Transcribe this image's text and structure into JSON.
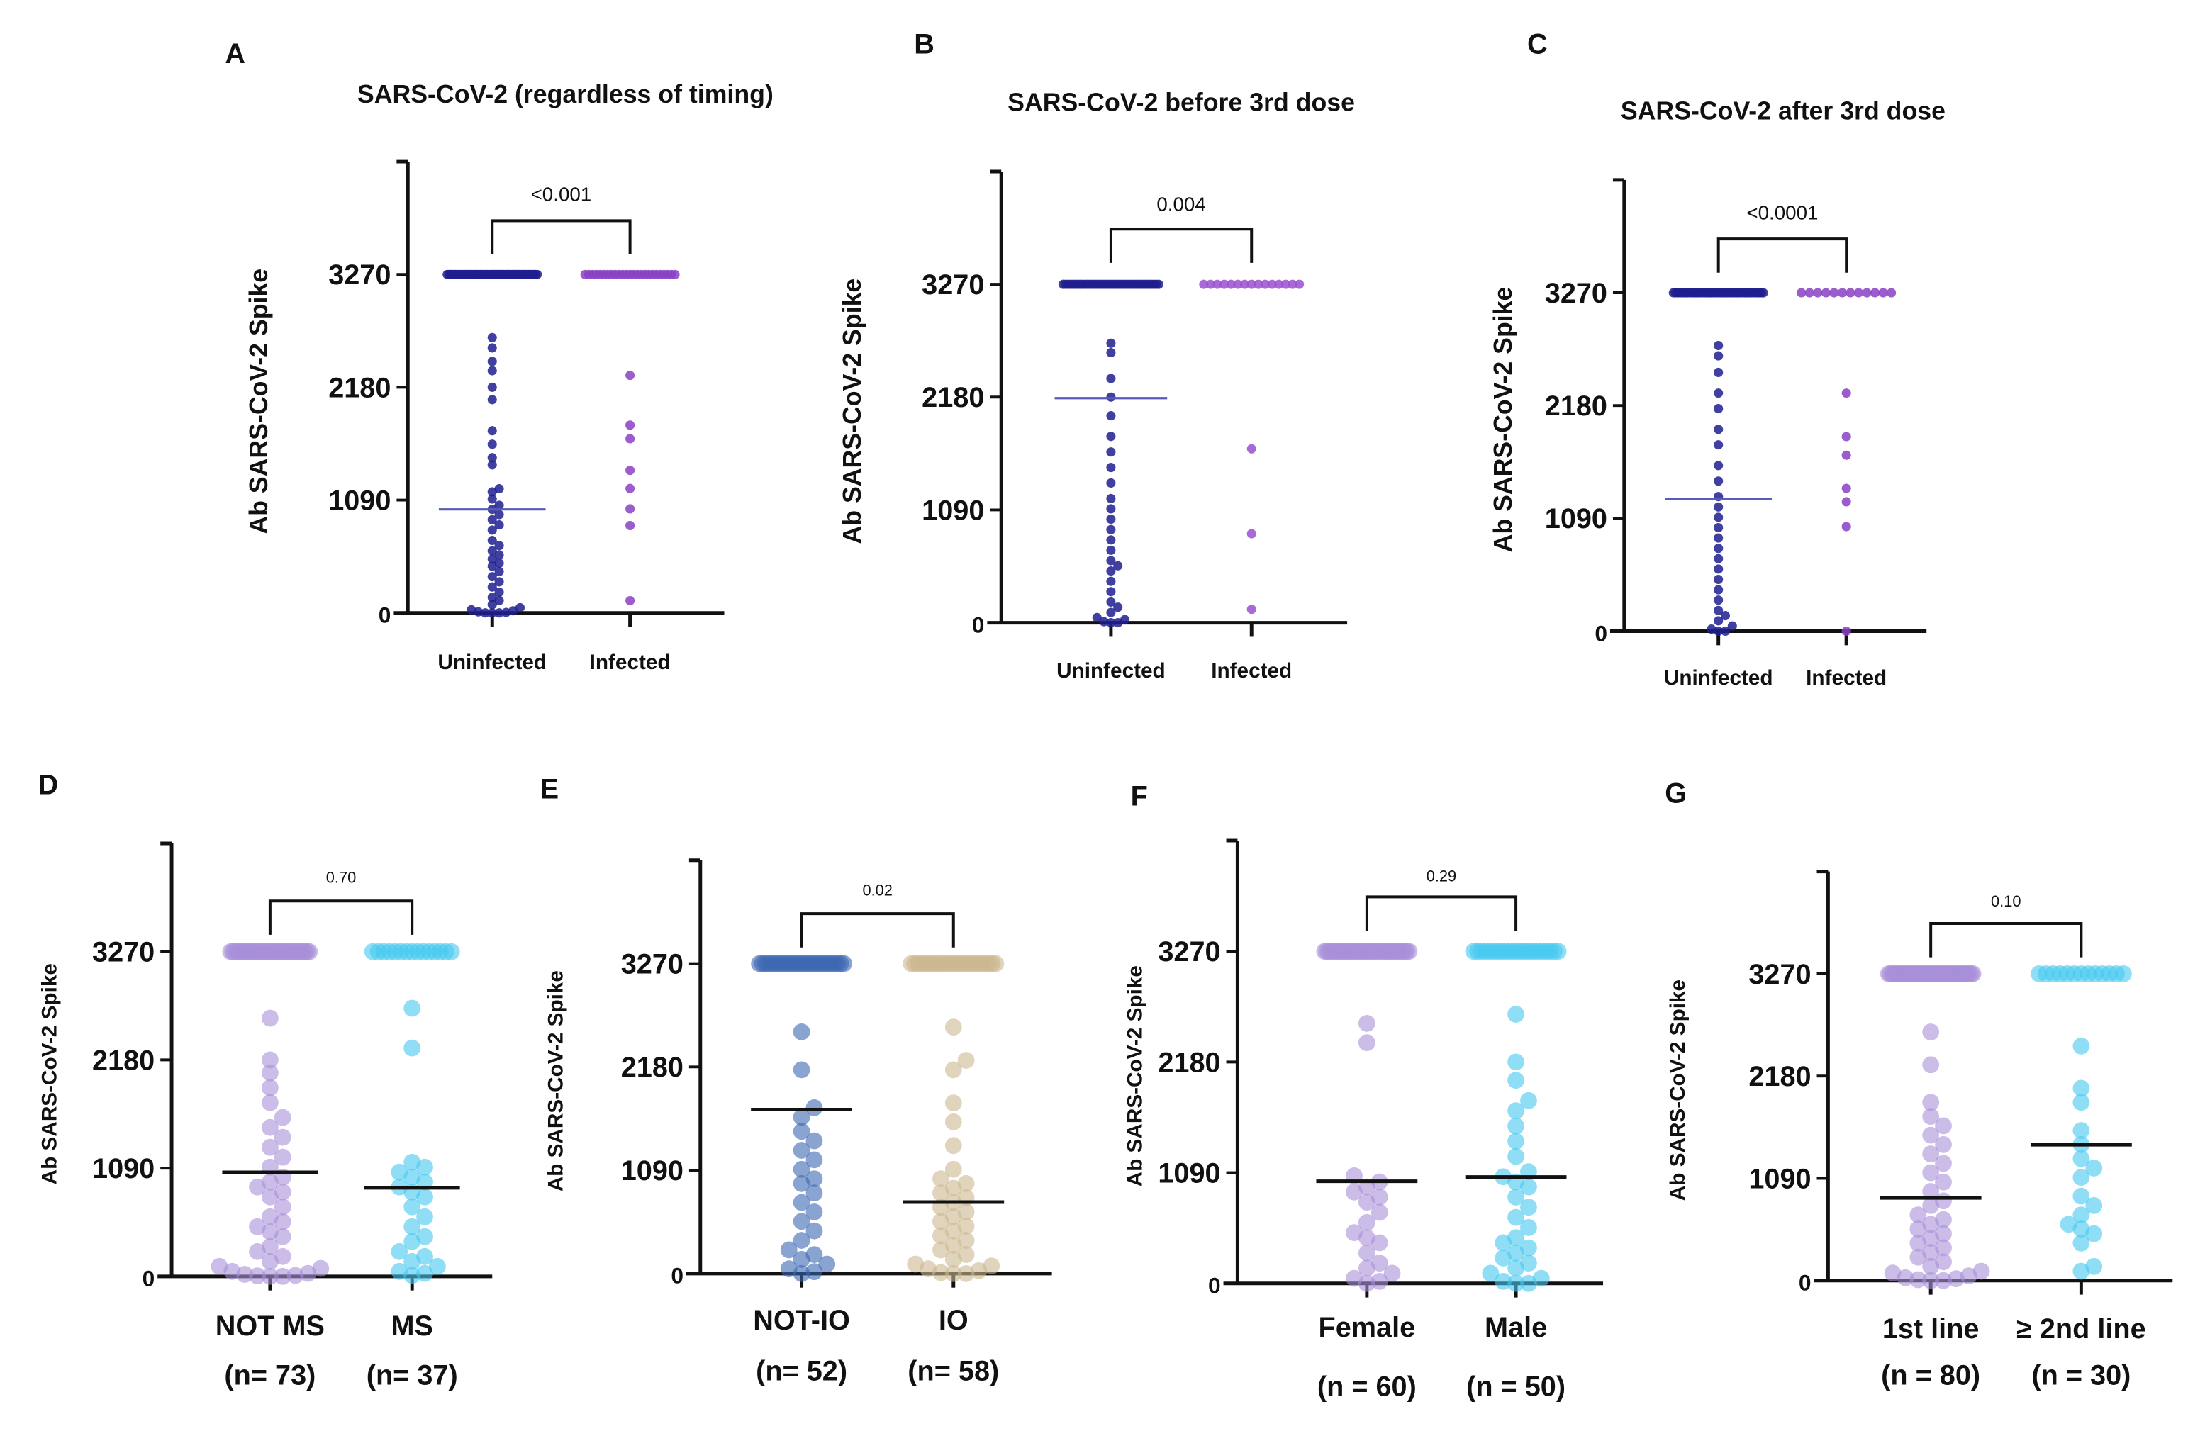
{
  "chart_data": [
    {
      "panel": "A",
      "type": "scatter",
      "title": "SARS-CoV-2 (regardless of timing)",
      "ylabel": "Ab SARS-CoV-2 Spike",
      "yticks": [
        0,
        1090,
        2180,
        3270
      ],
      "ylim": [
        0,
        4360
      ],
      "p_value": "<0.001",
      "groups": [
        {
          "label": "Uninfected",
          "n_label": "",
          "color": "#1e1e8f",
          "mean": 1000,
          "mean_color": "#5a5ab8",
          "count_at_3270": 55,
          "values": [
            2660,
            2560,
            2430,
            2340,
            2180,
            2060,
            1760,
            1630,
            1500,
            1430,
            1200,
            1170,
            1100,
            1040,
            1000,
            950,
            900,
            850,
            800,
            700,
            650,
            600,
            560,
            520,
            480,
            450,
            400,
            350,
            300,
            250,
            200,
            150,
            120,
            80,
            50,
            30,
            20,
            10,
            5,
            0,
            0,
            0
          ]
        },
        {
          "label": "Infected",
          "n_label": "",
          "color": "#8a3fc4",
          "mean": null,
          "mean_color": "#8a3fc4",
          "count_at_3270": 25,
          "values": [
            2295,
            1814,
            1683,
            1377,
            1202,
            1005,
            844,
            118
          ]
        }
      ]
    },
    {
      "panel": "B",
      "type": "scatter",
      "title": "SARS-CoV-2 before 3rd dose",
      "ylabel": "Ab SARS-CoV-2 Spike",
      "yticks": [
        0,
        1090,
        2180,
        3270
      ],
      "ylim": [
        0,
        4360
      ],
      "p_value": "0.004",
      "groups": [
        {
          "label": "Uninfected",
          "n_label": "",
          "color": "#1e1e8f",
          "mean": 2170,
          "mean_color": "#5a5ab8",
          "count_at_3270": 40,
          "values": [
            2700,
            2610,
            2360,
            2180,
            2000,
            1800,
            1650,
            1500,
            1350,
            1200,
            1100,
            1000,
            900,
            800,
            700,
            600,
            550,
            500,
            400,
            300,
            200,
            150,
            100,
            50,
            30,
            10,
            0,
            0
          ]
        },
        {
          "label": "Infected",
          "n_label": "",
          "color": "#9a50d0",
          "mean": null,
          "mean_color": "#9a50d0",
          "count_at_3270": 15,
          "values": [
            1680,
            860,
            130
          ]
        }
      ]
    },
    {
      "panel": "C",
      "type": "scatter",
      "title": "SARS-CoV-2 after 3rd dose",
      "ylabel": "Ab SARS-CoV-2 Spike",
      "yticks": [
        0,
        1090,
        2180,
        3270
      ],
      "ylim": [
        0,
        4360
      ],
      "p_value": "<0.0001",
      "groups": [
        {
          "label": "Uninfected",
          "n_label": "",
          "color": "#1e1e8f",
          "mean": 1276,
          "mean_color": "#5a5ab8",
          "count_at_3270": 45,
          "values": [
            2760,
            2660,
            2500,
            2300,
            2150,
            1950,
            1800,
            1600,
            1450,
            1300,
            1200,
            1100,
            1000,
            900,
            800,
            700,
            600,
            500,
            400,
            300,
            200,
            150,
            100,
            50,
            20,
            0,
            0
          ]
        },
        {
          "label": "Infected",
          "n_label": "",
          "color": "#8a3fc4",
          "mean": null,
          "mean_color": "#8a3fc4",
          "count_at_3270": 12,
          "values": [
            2300,
            1880,
            1700,
            1380,
            1250,
            1010,
            0
          ]
        }
      ]
    },
    {
      "panel": "D",
      "type": "scatter",
      "title": "",
      "ylabel": "Ab SARS-CoV-2 Spike",
      "yticks": [
        0,
        1090,
        2180,
        3270
      ],
      "ylim": [
        0,
        4360
      ],
      "p_value": "0.70",
      "groups": [
        {
          "label": "NOT MS",
          "n_label": "(n= 73)",
          "color": "#a98fd8",
          "mean": 1048,
          "mean_color": "#111111",
          "count_at_3270": 38,
          "values": [
            2600,
            2180,
            2050,
            1900,
            1750,
            1600,
            1500,
            1400,
            1300,
            1200,
            1100,
            1000,
            950,
            900,
            850,
            800,
            700,
            600,
            550,
            500,
            450,
            400,
            300,
            250,
            200,
            150,
            100,
            80,
            50,
            30,
            20,
            10,
            5,
            0,
            0
          ]
        },
        {
          "label": "MS",
          "n_label": "(n= 37)",
          "color": "#45c8f0",
          "mean": 892,
          "mean_color": "#111111",
          "count_at_3270": 15,
          "values": [
            2700,
            2300,
            1150,
            1100,
            1050,
            1000,
            950,
            900,
            850,
            800,
            700,
            600,
            500,
            400,
            350,
            250,
            200,
            150,
            100,
            50,
            30,
            10
          ]
        }
      ]
    },
    {
      "panel": "E",
      "type": "scatter",
      "title": "",
      "ylabel": "Ab SARS-CoV-2 Spike",
      "yticks": [
        0,
        1090,
        2180,
        3270
      ],
      "ylim": [
        0,
        4360
      ],
      "p_value": "0.02",
      "groups": [
        {
          "label": "NOT-IO",
          "n_label": "(n= 52)",
          "color": "#3c68b2",
          "mean": 1730,
          "mean_color": "#111111",
          "count_at_3270": 28,
          "values": [
            2550,
            2150,
            1750,
            1650,
            1500,
            1400,
            1300,
            1200,
            1100,
            1000,
            950,
            850,
            750,
            650,
            550,
            450,
            350,
            250,
            200,
            150,
            100,
            50,
            20,
            0
          ]
        },
        {
          "label": "IO",
          "n_label": "(n= 58)",
          "color": "#cbb890",
          "mean": 754,
          "mean_color": "#111111",
          "count_at_3270": 26,
          "values": [
            2600,
            2250,
            2150,
            1800,
            1600,
            1350,
            1100,
            1000,
            950,
            900,
            850,
            800,
            750,
            700,
            650,
            600,
            550,
            500,
            450,
            400,
            350,
            300,
            250,
            200,
            150,
            100,
            80,
            50,
            30,
            10,
            0,
            0
          ]
        }
      ]
    },
    {
      "panel": "F",
      "type": "scatter",
      "title": "",
      "ylabel": "Ab SARS-CoV-2 Spike",
      "yticks": [
        0,
        1090,
        2180,
        3270
      ],
      "ylim": [
        0,
        4360
      ],
      "p_value": "0.29",
      "groups": [
        {
          "label": "Female",
          "n_label": "(n = 60)",
          "color": "#a98fd8",
          "mean": 1006,
          "mean_color": "#111111",
          "count_at_3270": 40,
          "values": [
            2560,
            2370,
            1060,
            1000,
            950,
            900,
            850,
            800,
            700,
            600,
            500,
            450,
            400,
            300,
            200,
            150,
            100,
            50,
            20,
            0
          ]
        },
        {
          "label": "Male",
          "n_label": "(n = 50)",
          "color": "#45c8f0",
          "mean": 1048,
          "mean_color": "#111111",
          "count_at_3270": 22,
          "values": [
            2650,
            2180,
            2000,
            1800,
            1700,
            1550,
            1400,
            1250,
            1100,
            1050,
            1000,
            950,
            850,
            750,
            650,
            550,
            450,
            400,
            350,
            300,
            250,
            200,
            150,
            100,
            50,
            20,
            0,
            0
          ]
        }
      ]
    },
    {
      "panel": "G",
      "type": "scatter",
      "title": "",
      "ylabel": "Ab SARS-CoV-2 Spike",
      "yticks": [
        0,
        1090,
        2180,
        3270
      ],
      "ylim": [
        0,
        4360
      ],
      "p_value": "0.10",
      "groups": [
        {
          "label": "1st line",
          "n_label": "(n = 80)",
          "color": "#a98fd8",
          "mean": 881,
          "mean_color": "#111111",
          "count_at_3270": 46,
          "values": [
            2650,
            2300,
            1900,
            1750,
            1650,
            1550,
            1450,
            1350,
            1250,
            1150,
            1050,
            950,
            850,
            800,
            700,
            650,
            600,
            550,
            500,
            450,
            400,
            350,
            300,
            250,
            200,
            150,
            100,
            80,
            50,
            30,
            20,
            10,
            0,
            0
          ]
        },
        {
          "label": "≥ 2nd line",
          "n_label": "(n = 30)",
          "color": "#45c8f0",
          "mean": 1448,
          "mean_color": "#111111",
          "count_at_3270": 13,
          "values": [
            2500,
            2050,
            1900,
            1600,
            1450,
            1300,
            1200,
            1100,
            900,
            800,
            700,
            600,
            550,
            500,
            400,
            150,
            100
          ]
        }
      ]
    }
  ]
}
